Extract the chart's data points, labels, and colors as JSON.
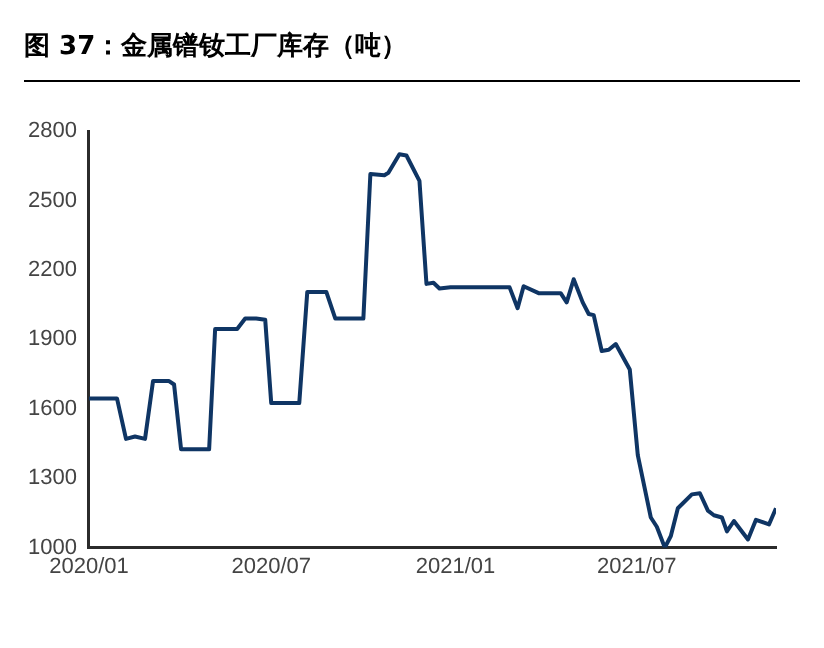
{
  "chart_data": {
    "type": "line",
    "title": "图 37：金属镨钕工厂库存（吨）",
    "x": [
      "2020-01-01",
      "2020-01-29",
      "2020-02-07",
      "2020-02-16",
      "2020-02-26",
      "2020-03-05",
      "2020-03-21",
      "2020-03-26",
      "2020-04-02",
      "2020-04-30",
      "2020-05-06",
      "2020-05-28",
      "2020-06-05",
      "2020-06-16",
      "2020-06-25",
      "2020-07-01",
      "2020-07-29",
      "2020-08-06",
      "2020-08-25",
      "2020-09-03",
      "2020-10-01",
      "2020-10-08",
      "2020-10-22",
      "2020-10-26",
      "2020-11-06",
      "2020-11-13",
      "2020-11-26",
      "2020-12-03",
      "2020-12-10",
      "2020-12-16",
      "2020-12-27",
      "2021-02-24",
      "2021-03-04",
      "2021-03-10",
      "2021-03-25",
      "2021-04-16",
      "2021-04-22",
      "2021-04-29",
      "2021-05-08",
      "2021-05-14",
      "2021-05-19",
      "2021-05-27",
      "2021-06-03",
      "2021-06-10",
      "2021-06-24",
      "2021-07-02",
      "2021-07-15",
      "2021-07-21",
      "2021-07-29",
      "2021-08-04",
      "2021-08-11",
      "2021-08-25",
      "2021-09-02",
      "2021-09-10",
      "2021-09-16",
      "2021-09-24",
      "2021-09-29",
      "2021-10-06",
      "2021-10-20",
      "2021-10-28",
      "2021-11-10",
      "2021-11-17"
    ],
    "series": [
      {
        "color": "#0f3564",
        "values": [
          1645,
          1645,
          1470,
          1480,
          1470,
          1720,
          1720,
          1705,
          1425,
          1425,
          1945,
          1945,
          1990,
          1990,
          1985,
          1625,
          1625,
          2105,
          2105,
          1990,
          1990,
          2615,
          2610,
          2620,
          2700,
          2695,
          2585,
          2140,
          2145,
          2120,
          2125,
          2125,
          2035,
          2130,
          2100,
          2100,
          2060,
          2160,
          2060,
          2010,
          2005,
          1850,
          1855,
          1880,
          1770,
          1400,
          1130,
          1090,
          1000,
          1050,
          1170,
          1230,
          1235,
          1160,
          1140,
          1130,
          1070,
          1115,
          1035,
          1120,
          1100,
          1170
        ]
      }
    ],
    "xlim": [
      "2020-01-01",
      "2021-11-17"
    ],
    "xticks": [
      {
        "value": "2020-01",
        "label": "2020/01"
      },
      {
        "value": "2020-07",
        "label": "2020/07"
      },
      {
        "value": "2021-01",
        "label": "2021/01"
      },
      {
        "value": "2021-07",
        "label": "2021/07"
      }
    ],
    "ylim": [
      1000,
      2800
    ],
    "yticks": [
      1000,
      1300,
      1600,
      1900,
      2200,
      2500,
      2800
    ],
    "grid": false,
    "legend": false,
    "marker": "none",
    "line_style": "solid"
  }
}
